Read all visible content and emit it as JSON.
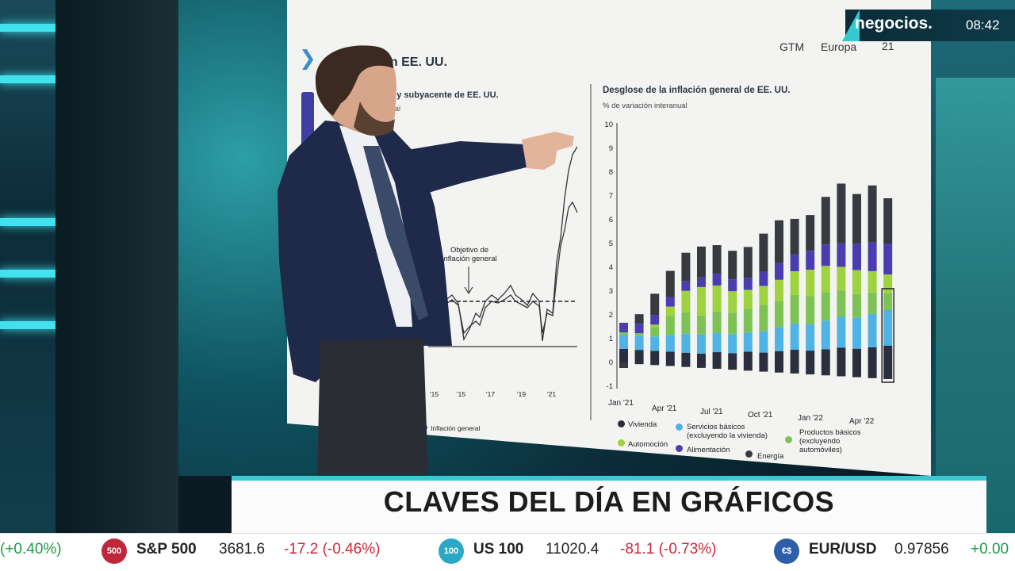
{
  "channel": {
    "name": "negocios.",
    "time": "08:42"
  },
  "slide": {
    "title": "en EE. UU.",
    "nav_gtm": "GTM",
    "nav_europa": "Europa",
    "nav_page": "21",
    "left_chart": {
      "subtitle": "al y subyacente de EE. UU.",
      "subtitle2": "nual",
      "annotation": "Objetivo de inflación general",
      "x_ticks": [
        "'15",
        "'17",
        "'19",
        "'21"
      ],
      "legend": "Inflación general"
    },
    "chart_data": {
      "type": "bar",
      "title": "Desglose de la inflación general de EE. UU.",
      "ylabel": "% de variación interanual",
      "ylim": [
        -1,
        10
      ],
      "y_ticks": [
        "10",
        "9",
        "8",
        "7",
        "6",
        "5",
        "4",
        "3",
        "2",
        "1",
        "0",
        "-1"
      ],
      "x_ticks": [
        "Jan '21",
        "Apr '21",
        "Jul '21",
        "Oct '21",
        "Jan '22",
        "Apr '22"
      ],
      "categories": [
        "Jan '21",
        "Feb '21",
        "Mar '21",
        "Apr '21",
        "May '21",
        "Jun '21",
        "Jul '21",
        "Aug '21",
        "Sep '21",
        "Oct '21",
        "Nov '21",
        "Dec '21",
        "Jan '22",
        "Feb '22",
        "Mar '22",
        "Apr '22",
        "May '22",
        "Jun '22"
      ],
      "series": [
        {
          "name": "Vivienda",
          "color": "#2b2f3d",
          "values": [
            0.6,
            0.6,
            0.6,
            0.6,
            0.6,
            0.6,
            0.7,
            0.7,
            0.8,
            0.8,
            0.9,
            1.0,
            1.0,
            1.1,
            1.2,
            1.2,
            1.3,
            1.4
          ]
        },
        {
          "name": "Servicios básicos (excluyendo la vivienda)",
          "color": "#4fb3e6",
          "values": [
            0.6,
            0.6,
            0.6,
            0.7,
            0.8,
            0.8,
            0.8,
            0.8,
            0.8,
            0.9,
            1.0,
            1.1,
            1.1,
            1.2,
            1.3,
            1.3,
            1.4,
            1.5
          ]
        },
        {
          "name": "Productos básicos (excluyendo automóviles)",
          "color": "#7ec255",
          "values": [
            0.1,
            0.1,
            0.4,
            0.8,
            0.9,
            0.8,
            0.9,
            0.9,
            1.0,
            1.1,
            1.1,
            1.2,
            1.2,
            1.2,
            1.1,
            1.0,
            0.9,
            0.7
          ]
        },
        {
          "name": "Automoción",
          "color": "#9ed23f",
          "values": [
            0.0,
            0.0,
            0.1,
            0.4,
            0.9,
            1.2,
            1.1,
            0.9,
            0.8,
            0.8,
            0.9,
            1.0,
            1.1,
            1.1,
            1.0,
            1.0,
            0.9,
            0.8
          ]
        },
        {
          "name": "Alimentación",
          "color": "#4b3db0",
          "values": [
            0.4,
            0.4,
            0.4,
            0.4,
            0.4,
            0.4,
            0.5,
            0.5,
            0.5,
            0.6,
            0.7,
            0.7,
            0.8,
            0.9,
            1.0,
            1.1,
            1.2,
            1.3
          ]
        },
        {
          "name": "Energía",
          "color": "#373b3f",
          "values": [
            -0.2,
            0.4,
            0.9,
            1.1,
            1.2,
            1.3,
            1.2,
            1.2,
            1.3,
            1.6,
            1.8,
            1.5,
            1.5,
            2.0,
            2.5,
            2.1,
            2.4,
            1.9
          ]
        }
      ],
      "highlight_category": "Jun '22",
      "grid": false,
      "legend_position": "bottom"
    }
  },
  "lower_third": {
    "title": "CLAVES DEL DÍA EN GRÁFICOS"
  },
  "ticker": {
    "items": [
      {
        "label": "",
        "value": "",
        "change": "(+0.40%)",
        "change_color": "#1f9a49"
      },
      {
        "badge": "500",
        "badge_color": "#c0273b",
        "label": "S&P 500",
        "value": "3681.6",
        "change": "-17.2 (-0.46%)",
        "change_color": "#d0263a"
      },
      {
        "badge": "100",
        "badge_color": "#2aa8c6",
        "label": "US 100",
        "value": "11020.4",
        "change": "-81.1 (-0.73%)",
        "change_color": "#d0263a"
      },
      {
        "badge": "€$",
        "badge_color": "#2f5ea8",
        "label": "EUR/USD",
        "value": "0.97856",
        "change": "+0.00",
        "change_color": "#1f9a49"
      }
    ]
  }
}
